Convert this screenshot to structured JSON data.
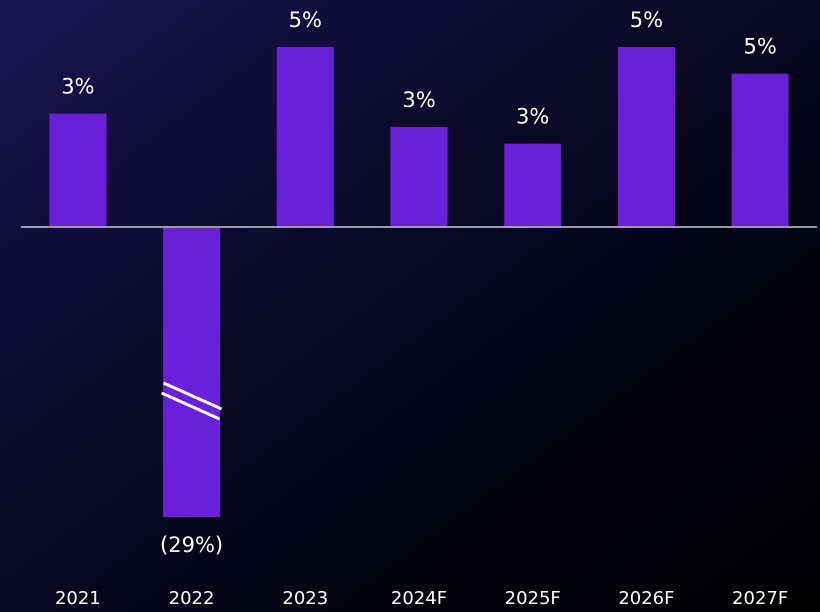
{
  "chart_data": {
    "type": "bar",
    "categories": [
      "2021",
      "2022",
      "2023",
      "2024F",
      "2025F",
      "2026F",
      "2027F"
    ],
    "values": [
      3.4,
      -29,
      5.4,
      3.0,
      2.5,
      5.4,
      4.6
    ],
    "value_labels": [
      "3%",
      "(29%)",
      "5%",
      "3%",
      "3%",
      "5%",
      "5%"
    ],
    "color": "#6a1fd9",
    "ylim": [
      -8.7,
      5.4
    ],
    "axis_break": true
  }
}
